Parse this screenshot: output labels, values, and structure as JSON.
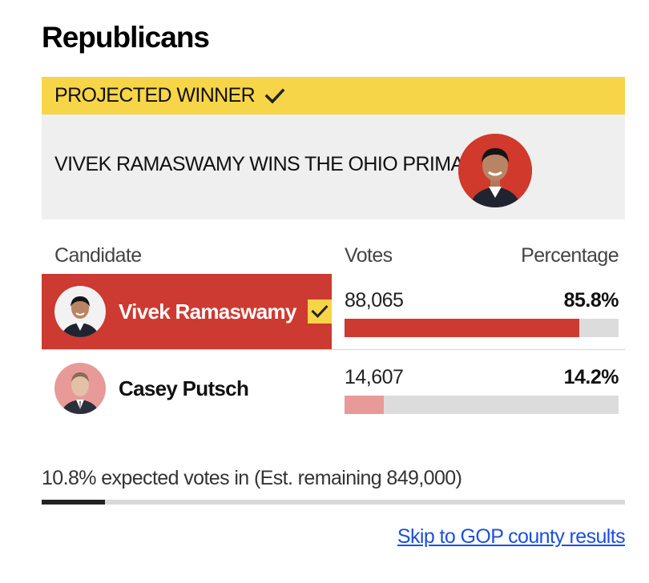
{
  "page": {
    "title": "Republicans"
  },
  "winner": {
    "banner_label": "PROJECTED WINNER",
    "headline": "VIVEK RAMASWAMY WINS THE OHIO PRIMARY"
  },
  "table": {
    "headers": {
      "candidate": "Candidate",
      "votes": "Votes",
      "percentage": "Percentage"
    },
    "rows": [
      {
        "name": "Vivek Ramaswamy",
        "votes": "88,065",
        "percentage": "85.8%",
        "share": 0.858,
        "winner": true
      },
      {
        "name": "Casey Putsch",
        "votes": "14,607",
        "percentage": "14.2%",
        "share": 0.142,
        "winner": false
      }
    ]
  },
  "reporting": {
    "text": "10.8% expected votes in (Est. remaining 849,000)",
    "share": 0.108
  },
  "links": {
    "skip": "Skip to GOP county results"
  },
  "colors": {
    "winner_yellow": "#f7d548",
    "winner_red": "#cc3a31",
    "loser_pink": "#e89a98",
    "link_blue": "#1d4ee0"
  },
  "icons": {
    "check": "check-icon",
    "avatar": "candidate-photo"
  }
}
